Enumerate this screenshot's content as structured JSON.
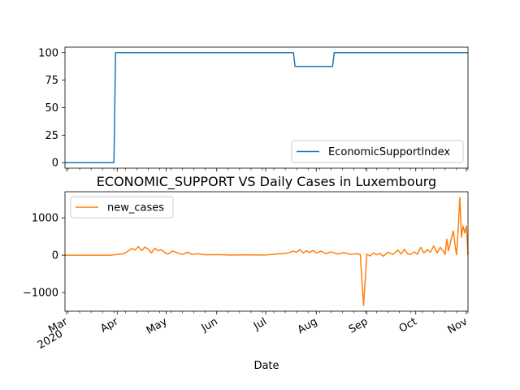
{
  "chart_data": [
    {
      "type": "line",
      "title": "",
      "xlabel": "",
      "ylabel": "",
      "xlim": [
        "2020-02-29",
        "2020-11-02"
      ],
      "ylim": [
        -5,
        105
      ],
      "yticks": [
        0,
        25,
        50,
        75,
        100
      ],
      "legend_position": "lower-right",
      "series": [
        {
          "name": "EconomicSupportIndex",
          "color": "#1f77b4",
          "points": [
            [
              "2020-02-29",
              0
            ],
            [
              "2020-03-30",
              0
            ],
            [
              "2020-03-31",
              100
            ],
            [
              "2020-07-18",
              100
            ],
            [
              "2020-07-19",
              87.5
            ],
            [
              "2020-08-11",
              87.5
            ],
            [
              "2020-08-12",
              100
            ],
            [
              "2020-11-02",
              100
            ]
          ]
        }
      ]
    },
    {
      "type": "line",
      "title": "ECONOMIC_SUPPORT VS Daily Cases in Luxembourg",
      "xlabel": "Date",
      "ylabel": "",
      "xlim": [
        "2020-02-29",
        "2020-11-02"
      ],
      "ylim": [
        -1500,
        1700
      ],
      "yticks": [
        -1000,
        0,
        1000
      ],
      "legend_position": "upper-left",
      "x_tick_labels": [
        {
          "date": "2020-03-01",
          "label": "Mar",
          "label2": "2020"
        },
        {
          "date": "2020-04-01",
          "label": "Apr"
        },
        {
          "date": "2020-05-01",
          "label": "May"
        },
        {
          "date": "2020-06-01",
          "label": "Jun"
        },
        {
          "date": "2020-07-01",
          "label": "Jul"
        },
        {
          "date": "2020-08-01",
          "label": "Aug"
        },
        {
          "date": "2020-09-01",
          "label": "Sep"
        },
        {
          "date": "2020-10-01",
          "label": "Oct"
        },
        {
          "date": "2020-11-01",
          "label": "Nov"
        }
      ],
      "series": [
        {
          "name": "new_cases",
          "color": "#ff7f0e",
          "points": [
            [
              "2020-02-29",
              0
            ],
            [
              "2020-03-10",
              0
            ],
            [
              "2020-03-20",
              0
            ],
            [
              "2020-03-28",
              0
            ],
            [
              "2020-04-01",
              20
            ],
            [
              "2020-04-05",
              40
            ],
            [
              "2020-04-08",
              120
            ],
            [
              "2020-04-10",
              180
            ],
            [
              "2020-04-12",
              140
            ],
            [
              "2020-04-14",
              230
            ],
            [
              "2020-04-16",
              120
            ],
            [
              "2020-04-18",
              220
            ],
            [
              "2020-04-20",
              160
            ],
            [
              "2020-04-22",
              60
            ],
            [
              "2020-04-24",
              190
            ],
            [
              "2020-04-26",
              120
            ],
            [
              "2020-04-28",
              150
            ],
            [
              "2020-04-30",
              80
            ],
            [
              "2020-05-02",
              30
            ],
            [
              "2020-05-05",
              110
            ],
            [
              "2020-05-08",
              60
            ],
            [
              "2020-05-11",
              20
            ],
            [
              "2020-05-14",
              80
            ],
            [
              "2020-05-17",
              20
            ],
            [
              "2020-05-20",
              40
            ],
            [
              "2020-05-25",
              10
            ],
            [
              "2020-06-01",
              15
            ],
            [
              "2020-06-10",
              5
            ],
            [
              "2020-06-20",
              10
            ],
            [
              "2020-06-30",
              5
            ],
            [
              "2020-07-05",
              20
            ],
            [
              "2020-07-10",
              40
            ],
            [
              "2020-07-15",
              60
            ],
            [
              "2020-07-18",
              110
            ],
            [
              "2020-07-20",
              80
            ],
            [
              "2020-07-22",
              150
            ],
            [
              "2020-07-24",
              60
            ],
            [
              "2020-07-26",
              120
            ],
            [
              "2020-07-28",
              70
            ],
            [
              "2020-07-30",
              130
            ],
            [
              "2020-08-01",
              60
            ],
            [
              "2020-08-04",
              110
            ],
            [
              "2020-08-07",
              40
            ],
            [
              "2020-08-10",
              90
            ],
            [
              "2020-08-14",
              30
            ],
            [
              "2020-08-18",
              70
            ],
            [
              "2020-08-22",
              20
            ],
            [
              "2020-08-26",
              40
            ],
            [
              "2020-08-28",
              10
            ],
            [
              "2020-08-30",
              -1350
            ],
            [
              "2020-09-01",
              30
            ],
            [
              "2020-09-03",
              -20
            ],
            [
              "2020-09-05",
              60
            ],
            [
              "2020-09-07",
              10
            ],
            [
              "2020-09-09",
              50
            ],
            [
              "2020-09-11",
              -30
            ],
            [
              "2020-09-14",
              80
            ],
            [
              "2020-09-17",
              20
            ],
            [
              "2020-09-20",
              140
            ],
            [
              "2020-09-22",
              30
            ],
            [
              "2020-09-24",
              160
            ],
            [
              "2020-09-26",
              40
            ],
            [
              "2020-09-28",
              20
            ],
            [
              "2020-09-30",
              90
            ],
            [
              "2020-10-02",
              30
            ],
            [
              "2020-10-04",
              210
            ],
            [
              "2020-10-06",
              60
            ],
            [
              "2020-10-08",
              150
            ],
            [
              "2020-10-10",
              80
            ],
            [
              "2020-10-12",
              250
            ],
            [
              "2020-10-14",
              60
            ],
            [
              "2020-10-16",
              210
            ],
            [
              "2020-10-18",
              100
            ],
            [
              "2020-10-19",
              20
            ],
            [
              "2020-10-20",
              430
            ],
            [
              "2020-10-21",
              120
            ],
            [
              "2020-10-22",
              300
            ],
            [
              "2020-10-23",
              480
            ],
            [
              "2020-10-24",
              650
            ],
            [
              "2020-10-25",
              300
            ],
            [
              "2020-10-26",
              10
            ],
            [
              "2020-10-27",
              700
            ],
            [
              "2020-10-28",
              1550
            ],
            [
              "2020-10-29",
              480
            ],
            [
              "2020-10-30",
              780
            ],
            [
              "2020-10-31",
              600
            ],
            [
              "2020-11-01",
              780
            ],
            [
              "2020-11-02",
              0
            ]
          ]
        }
      ]
    }
  ]
}
